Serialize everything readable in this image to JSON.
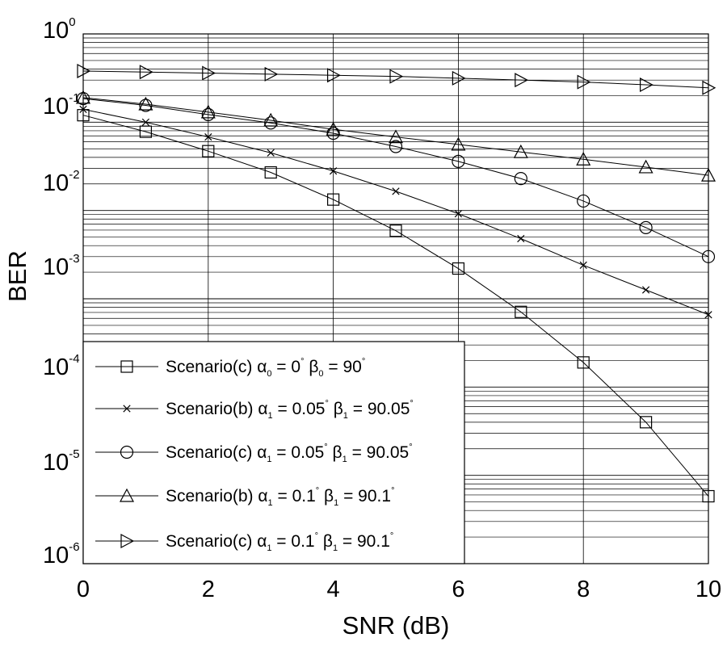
{
  "chart_data": {
    "type": "line",
    "xlabel": "SNR (dB)",
    "ylabel": "BER",
    "xlim": [
      0,
      10
    ],
    "ylim": [
      1e-06,
      1
    ],
    "yscale": "log",
    "grid": true,
    "legend_position": "bottom-left",
    "x_ticks": [
      "0",
      "2",
      "4",
      "6",
      "8",
      "10"
    ],
    "y_ticks": [
      {
        "base": "10",
        "exp": "0"
      },
      {
        "base": "10",
        "exp": "-1"
      },
      {
        "base": "10",
        "exp": "-2"
      },
      {
        "base": "10",
        "exp": "-3"
      },
      {
        "base": "10",
        "exp": "-4"
      },
      {
        "base": "10",
        "exp": "-5"
      },
      {
        "base": "10",
        "exp": "-6"
      }
    ],
    "x": [
      0,
      1,
      2,
      3,
      4,
      5,
      6,
      7,
      8,
      9,
      10
    ],
    "series": [
      {
        "marker": "square",
        "legend": [
          {
            "t": "Scenario(c) "
          },
          {
            "t": "α"
          },
          {
            "t": "0",
            "sub": true
          },
          {
            "t": " = 0"
          },
          {
            "t": "°",
            "sup": true
          },
          {
            "t": " β"
          },
          {
            "t": "0",
            "sub": true
          },
          {
            "t": " = 90"
          },
          {
            "t": "°",
            "sup": true
          }
        ],
        "values": [
          0.12,
          0.078,
          0.047,
          0.027,
          0.0133,
          0.0059,
          0.0022,
          0.00071,
          0.00019,
          4e-05,
          5.8e-06
        ]
      },
      {
        "marker": "x",
        "legend": [
          {
            "t": "Scenario(b) "
          },
          {
            "t": "α"
          },
          {
            "t": "1",
            "sub": true
          },
          {
            "t": " = 0.05"
          },
          {
            "t": "°",
            "sup": true
          },
          {
            "t": " β"
          },
          {
            "t": "1",
            "sub": true
          },
          {
            "t": " = 90.05"
          },
          {
            "t": "°",
            "sup": true
          }
        ],
        "values": [
          0.14,
          0.1,
          0.068,
          0.045,
          0.028,
          0.0165,
          0.0092,
          0.0048,
          0.0024,
          0.00126,
          0.00066
        ]
      },
      {
        "marker": "circle",
        "legend": [
          {
            "t": "Scenario(c) "
          },
          {
            "t": "α"
          },
          {
            "t": "1",
            "sub": true
          },
          {
            "t": " = 0.05"
          },
          {
            "t": "°",
            "sup": true
          },
          {
            "t": " β"
          },
          {
            "t": "1",
            "sub": true
          },
          {
            "t": " = 90.05"
          },
          {
            "t": "°",
            "sup": true
          }
        ],
        "values": [
          0.185,
          0.155,
          0.122,
          0.098,
          0.075,
          0.053,
          0.036,
          0.023,
          0.0128,
          0.0064,
          0.003
        ]
      },
      {
        "marker": "triangle-up",
        "legend": [
          {
            "t": "Scenario(b) "
          },
          {
            "t": "α"
          },
          {
            "t": "1",
            "sub": true
          },
          {
            "t": " = 0.1"
          },
          {
            "t": "°",
            "sup": true
          },
          {
            "t": " β"
          },
          {
            "t": "1",
            "sub": true
          },
          {
            "t": " = 90.1"
          },
          {
            "t": "°",
            "sup": true
          }
        ],
        "values": [
          0.19,
          0.16,
          0.13,
          0.105,
          0.083,
          0.068,
          0.056,
          0.046,
          0.038,
          0.031,
          0.025
        ]
      },
      {
        "marker": "triangle-right",
        "legend": [
          {
            "t": "Scenario(c) "
          },
          {
            "t": "α"
          },
          {
            "t": "1",
            "sub": true
          },
          {
            "t": " = 0.1"
          },
          {
            "t": "°",
            "sup": true
          },
          {
            "t": " β"
          },
          {
            "t": "1",
            "sub": true
          },
          {
            "t": " = 90.1"
          },
          {
            "t": "°",
            "sup": true
          }
        ],
        "values": [
          0.38,
          0.37,
          0.36,
          0.35,
          0.34,
          0.33,
          0.315,
          0.3,
          0.285,
          0.265,
          0.245
        ]
      }
    ]
  }
}
